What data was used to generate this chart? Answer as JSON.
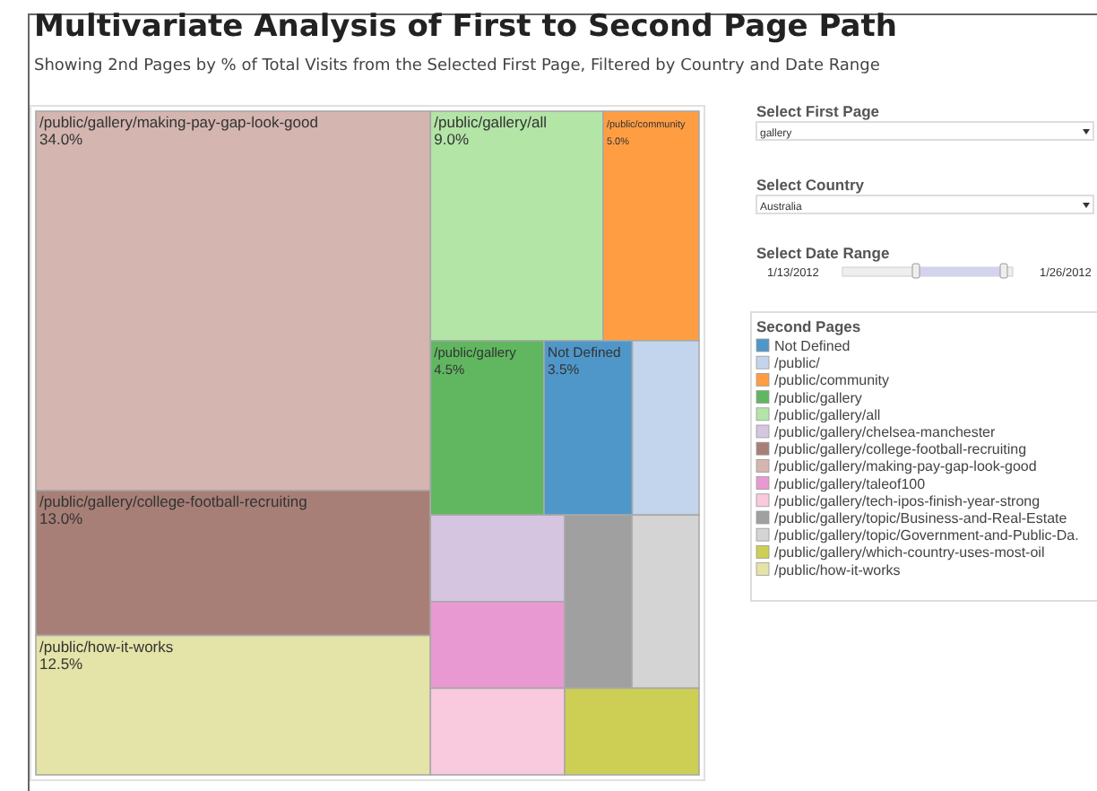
{
  "chart_data": {
    "type": "other",
    "title": "Multivariate Analysis of First to Second Page Path",
    "subtitle": "Showing 2nd Pages by % of Total Visits from the Selected First Page, Filtered by Country and Date Range",
    "legend_title": "Second Pages",
    "categories": [
      "Not Defined",
      "/public/",
      "/public/community",
      "/public/gallery",
      "/public/gallery/all",
      "/public/gallery/chelsea-manchester",
      "/public/gallery/college-football-recruiting",
      "/public/gallery/making-pay-gap-look-good",
      "/public/gallery/taleof100",
      "/public/gallery/tech-ipos-finish-year-strong",
      "/public/gallery/topic/Business-and-Real-Estate",
      "/public/gallery/topic/Government-and-Public-Da.",
      "/public/gallery/which-country-uses-most-oil",
      "/public/how-it-works"
    ],
    "values": [
      3.5,
      null,
      5.0,
      4.5,
      9.0,
      null,
      13.0,
      34.0,
      null,
      null,
      null,
      null,
      null,
      12.5
    ],
    "value_labels": [
      "3.5%",
      null,
      "5.0%",
      "4.5%",
      "9.0%",
      null,
      "13.0%",
      "34.0%",
      null,
      null,
      null,
      null,
      null,
      "12.5%"
    ],
    "colors": [
      "#5097c9",
      "#c3d5ec",
      "#ff9d42",
      "#60b760",
      "#b3e5a6",
      "#d6c5e0",
      "#a77f76",
      "#d4b5b0",
      "#e999d2",
      "#f9c9dd",
      "#a0a0a0",
      "#d4d4d4",
      "#cdcf55",
      "#e4e3a8"
    ],
    "annotations": [
      "Select First Page",
      "gallery",
      "Select Country",
      "Australia",
      "Select Date Range",
      "1/13/2012",
      "1/26/2012"
    ]
  }
}
